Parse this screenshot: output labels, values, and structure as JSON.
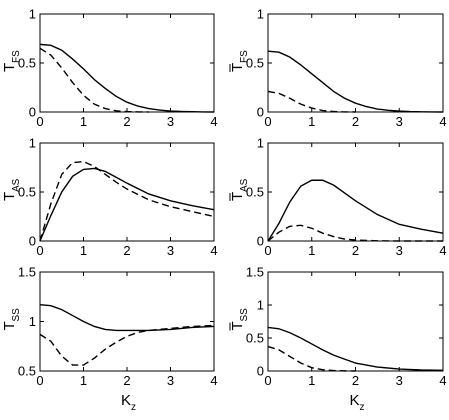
{
  "figure": {
    "xlabel_main": "K",
    "xlabel_sub": "z"
  },
  "chart_data": [
    {
      "type": "line",
      "ylabel_main": "T",
      "ylabel_sub": "FS",
      "ylabel_bar": false,
      "xlim": [
        0,
        4
      ],
      "ylim": [
        0,
        1
      ],
      "xticks": [
        "0",
        "1",
        "2",
        "3",
        "4"
      ],
      "yticks": [
        "0",
        "0.5",
        "1"
      ],
      "show_xlabel": false,
      "series": [
        {
          "style": "solid",
          "x": [
            0,
            0.25,
            0.5,
            0.75,
            1,
            1.25,
            1.5,
            1.75,
            2,
            2.25,
            2.5,
            2.75,
            3,
            3.25,
            3.5,
            3.75,
            4
          ],
          "y": [
            0.69,
            0.68,
            0.63,
            0.54,
            0.44,
            0.33,
            0.24,
            0.16,
            0.1,
            0.06,
            0.035,
            0.02,
            0.01,
            0.005,
            0.003,
            0.001,
            0.0
          ]
        },
        {
          "style": "dashed",
          "x": [
            0,
            0.25,
            0.5,
            0.75,
            1,
            1.25,
            1.5,
            1.75,
            2,
            2.25,
            2.5
          ],
          "y": [
            0.65,
            0.58,
            0.45,
            0.3,
            0.17,
            0.08,
            0.035,
            0.012,
            0.004,
            0.001,
            0.0
          ]
        }
      ]
    },
    {
      "type": "line",
      "ylabel_main": "T",
      "ylabel_sub": "FS",
      "ylabel_bar": true,
      "xlim": [
        0,
        4
      ],
      "ylim": [
        0,
        1
      ],
      "xticks": [
        "0",
        "1",
        "2",
        "3",
        "4"
      ],
      "yticks": [
        "0",
        "0.5",
        "1"
      ],
      "show_xlabel": false,
      "series": [
        {
          "style": "solid",
          "x": [
            0,
            0.25,
            0.5,
            0.75,
            1,
            1.25,
            1.5,
            1.75,
            2,
            2.25,
            2.5,
            2.75,
            3,
            3.25,
            3.5,
            3.75,
            4
          ],
          "y": [
            0.62,
            0.61,
            0.56,
            0.48,
            0.39,
            0.3,
            0.21,
            0.14,
            0.09,
            0.055,
            0.03,
            0.017,
            0.009,
            0.004,
            0.002,
            0.001,
            0.0
          ]
        },
        {
          "style": "dashed",
          "x": [
            0,
            0.25,
            0.5,
            0.75,
            1,
            1.25,
            1.5,
            1.75,
            2
          ],
          "y": [
            0.21,
            0.19,
            0.14,
            0.08,
            0.04,
            0.015,
            0.005,
            0.001,
            0.0
          ]
        }
      ]
    },
    {
      "type": "line",
      "ylabel_main": "T",
      "ylabel_sub": "AS",
      "ylabel_bar": false,
      "xlim": [
        0,
        4
      ],
      "ylim": [
        0,
        1
      ],
      "xticks": [
        "0",
        "1",
        "2",
        "3",
        "4"
      ],
      "yticks": [
        "0",
        "0.5",
        "1"
      ],
      "show_xlabel": false,
      "series": [
        {
          "style": "solid",
          "x": [
            0,
            0.25,
            0.5,
            0.75,
            1,
            1.25,
            1.5,
            1.75,
            2,
            2.5,
            3,
            3.5,
            4
          ],
          "y": [
            0.0,
            0.26,
            0.5,
            0.66,
            0.73,
            0.74,
            0.71,
            0.65,
            0.59,
            0.48,
            0.41,
            0.36,
            0.32
          ]
        },
        {
          "style": "dashed",
          "x": [
            0,
            0.25,
            0.5,
            0.75,
            1,
            1.25,
            1.5,
            1.75,
            2,
            2.5,
            3,
            3.5,
            4
          ],
          "y": [
            0.0,
            0.38,
            0.68,
            0.8,
            0.81,
            0.76,
            0.68,
            0.6,
            0.53,
            0.42,
            0.35,
            0.3,
            0.25
          ]
        }
      ]
    },
    {
      "type": "line",
      "ylabel_main": "T",
      "ylabel_sub": "AS",
      "ylabel_bar": true,
      "xlim": [
        0,
        4
      ],
      "ylim": [
        0,
        1
      ],
      "xticks": [
        "0",
        "1",
        "2",
        "3",
        "4"
      ],
      "yticks": [
        "0",
        "0.5",
        "1"
      ],
      "show_xlabel": false,
      "series": [
        {
          "style": "solid",
          "x": [
            0,
            0.25,
            0.5,
            0.75,
            1,
            1.25,
            1.5,
            1.75,
            2,
            2.5,
            3,
            3.5,
            4
          ],
          "y": [
            0.0,
            0.18,
            0.4,
            0.56,
            0.62,
            0.62,
            0.57,
            0.49,
            0.41,
            0.27,
            0.17,
            0.12,
            0.08
          ]
        },
        {
          "style": "dashed",
          "x": [
            0,
            0.25,
            0.5,
            0.75,
            1,
            1.25,
            1.5,
            1.75,
            2,
            2.5,
            3,
            4
          ],
          "y": [
            0.0,
            0.09,
            0.15,
            0.16,
            0.13,
            0.08,
            0.045,
            0.02,
            0.01,
            0.002,
            0.0,
            0.0
          ]
        }
      ]
    },
    {
      "type": "line",
      "ylabel_main": "T",
      "ylabel_sub": "SS",
      "ylabel_bar": false,
      "xlim": [
        0,
        4
      ],
      "ylim": [
        0.5,
        1.5
      ],
      "xticks": [
        "0",
        "1",
        "2",
        "3",
        "4"
      ],
      "yticks": [
        "0.5",
        "1",
        "1.5"
      ],
      "show_xlabel": true,
      "series": [
        {
          "style": "solid",
          "x": [
            0,
            0.25,
            0.5,
            0.75,
            1,
            1.25,
            1.5,
            1.75,
            2,
            2.5,
            3,
            3.5,
            4
          ],
          "y": [
            1.17,
            1.16,
            1.12,
            1.06,
            1.0,
            0.95,
            0.92,
            0.91,
            0.91,
            0.91,
            0.92,
            0.94,
            0.95
          ]
        },
        {
          "style": "dashed",
          "x": [
            0,
            0.25,
            0.5,
            0.75,
            1,
            1.25,
            1.5,
            1.75,
            2,
            2.25,
            2.5,
            3,
            3.5,
            4
          ],
          "y": [
            0.87,
            0.8,
            0.65,
            0.56,
            0.56,
            0.63,
            0.72,
            0.79,
            0.85,
            0.89,
            0.91,
            0.93,
            0.95,
            0.96
          ]
        }
      ]
    },
    {
      "type": "line",
      "ylabel_main": "T",
      "ylabel_sub": "SS",
      "ylabel_bar": true,
      "xlim": [
        0,
        4
      ],
      "ylim": [
        0,
        1.5
      ],
      "xticks": [
        "0",
        "1",
        "2",
        "3",
        "4"
      ],
      "yticks": [
        "0",
        "0.5",
        "1",
        "1.5"
      ],
      "show_xlabel": true,
      "series": [
        {
          "style": "solid",
          "x": [
            0,
            0.25,
            0.5,
            0.75,
            1,
            1.25,
            1.5,
            1.75,
            2,
            2.5,
            3,
            3.5,
            4
          ],
          "y": [
            0.66,
            0.64,
            0.58,
            0.5,
            0.41,
            0.32,
            0.24,
            0.18,
            0.12,
            0.06,
            0.03,
            0.015,
            0.01
          ]
        },
        {
          "style": "dashed",
          "x": [
            0,
            0.25,
            0.5,
            0.75,
            1,
            1.25,
            1.5,
            1.75,
            2
          ],
          "y": [
            0.37,
            0.32,
            0.22,
            0.12,
            0.05,
            0.02,
            0.007,
            0.002,
            0.0
          ]
        }
      ]
    }
  ]
}
